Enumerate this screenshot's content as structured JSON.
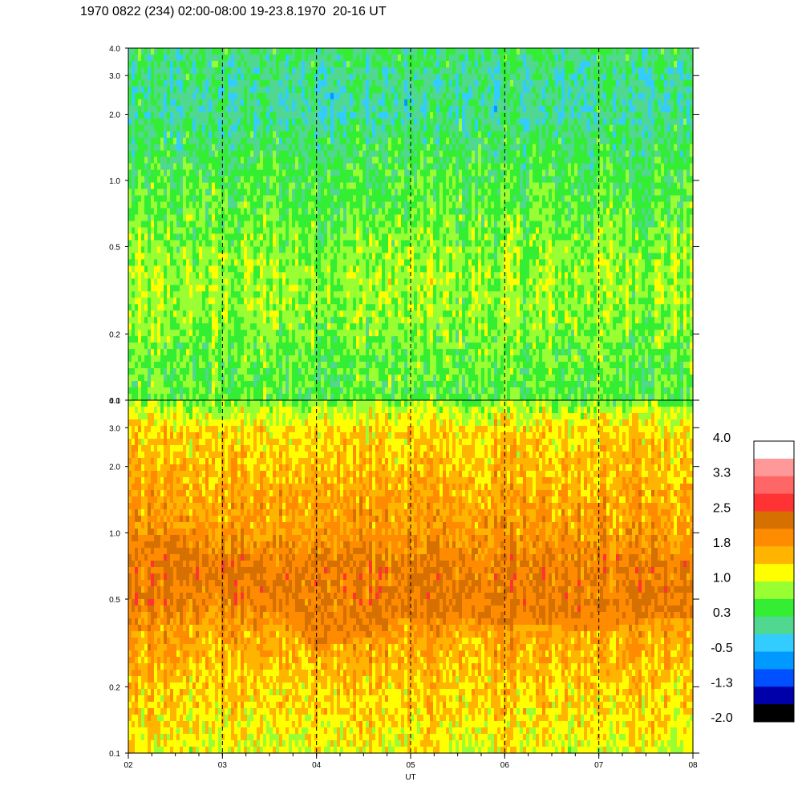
{
  "title": "1970 0822 (234) 02:00-08:00 19-23.8.1970  20-16 UT",
  "chart_data": {
    "type": "heatmap",
    "title": "1970 0822 (234) 02:00-08:00 19-23.8.1970  20-16 UT",
    "xlabel": "UT",
    "x_ticks": [
      "02",
      "03",
      "04",
      "05",
      "06",
      "07",
      "08"
    ],
    "x_range": [
      2,
      8
    ],
    "y_scale": "log",
    "y_range": [
      0.1,
      4.0
    ],
    "y_ticks": [
      "0.1",
      "0.2",
      "0.5",
      "1.0",
      "2.0",
      "3.0",
      "4.0"
    ],
    "y_tick_values": [
      0.1,
      0.2,
      0.5,
      1.0,
      2.0,
      3.0,
      4.0
    ],
    "dashed_vlines_hours": [
      3,
      4,
      5,
      6,
      7
    ],
    "panels": [
      {
        "name": "upper",
        "dominant_levels": "0.3 to 1.0 (green/yellow), bluish patches near 2-3 around 02:30 and 04:45",
        "row_profile": [
          {
            "y": 0.1,
            "level": 0.5
          },
          {
            "y": 0.15,
            "level": 0.55
          },
          {
            "y": 0.25,
            "level": 0.75
          },
          {
            "y": 0.35,
            "level": 0.85
          },
          {
            "y": 0.5,
            "level": 0.7
          },
          {
            "y": 0.7,
            "level": 0.55
          },
          {
            "y": 1.0,
            "level": 0.45
          },
          {
            "y": 1.5,
            "level": 0.25
          },
          {
            "y": 2.0,
            "level": 0.05
          },
          {
            "y": 3.0,
            "level": 0.1
          },
          {
            "y": 4.0,
            "level": 0.25
          }
        ]
      },
      {
        "name": "lower",
        "dominant_levels": "1.0 to 2.5 (yellow/orange/brown), brown band near 0.5-1.0",
        "row_profile": [
          {
            "y": 0.1,
            "level": 1.15
          },
          {
            "y": 0.15,
            "level": 1.35
          },
          {
            "y": 0.25,
            "level": 1.55
          },
          {
            "y": 0.35,
            "level": 1.75
          },
          {
            "y": 0.5,
            "level": 2.1
          },
          {
            "y": 0.7,
            "level": 2.15
          },
          {
            "y": 1.0,
            "level": 1.85
          },
          {
            "y": 1.5,
            "level": 1.7
          },
          {
            "y": 2.0,
            "level": 1.55
          },
          {
            "y": 3.0,
            "level": 1.35
          },
          {
            "y": 4.0,
            "level": 0.7
          }
        ],
        "brown_band_y": [
          [
            2.0,
            0.85
          ],
          [
            2.5,
            0.8
          ],
          [
            3.0,
            0.6
          ],
          [
            3.5,
            0.55
          ],
          [
            4.0,
            0.35
          ],
          [
            4.5,
            0.4
          ],
          [
            5.0,
            0.5
          ],
          [
            5.5,
            0.5
          ],
          [
            6.0,
            0.45
          ],
          [
            6.5,
            0.45
          ],
          [
            7.0,
            0.42
          ],
          [
            7.5,
            0.48
          ],
          [
            8.0,
            0.5
          ]
        ]
      }
    ],
    "colorbar": {
      "labels": [
        "4.0",
        "3.3",
        "2.5",
        "1.8",
        "1.0",
        "0.3",
        "-0.5",
        "-1.3",
        "-2.0"
      ],
      "colors": [
        "#ffffff",
        "#ff9999",
        "#ff6666",
        "#ff3333",
        "#d67000",
        "#ff8c00",
        "#ffb400",
        "#ffff00",
        "#99ff33",
        "#33ee33",
        "#50d890",
        "#33ccff",
        "#0099ff",
        "#0050ff",
        "#0000aa",
        "#000000"
      ]
    }
  }
}
